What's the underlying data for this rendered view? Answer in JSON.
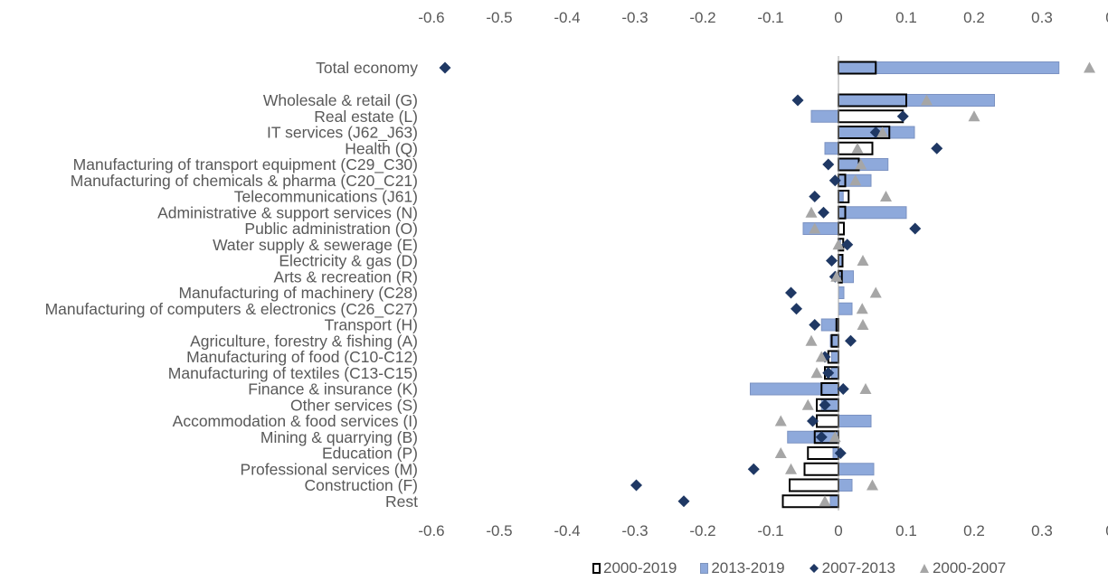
{
  "chart_data": {
    "type": "bar",
    "orientation": "horizontal",
    "xlim": [
      -0.6,
      0.4
    ],
    "x_ticks": [
      "-0.6",
      "-0.5",
      "-0.4",
      "-0.3",
      "-0.2",
      "-0.1",
      "0",
      "0.1",
      "0.2",
      "0.3",
      "0"
    ],
    "grid": false,
    "legend_position": "bottom",
    "categories": [
      "Total economy",
      "Wholesale & retail (G)",
      "Real estate (L)",
      "IT services (J62_J63)",
      "Health (Q)",
      "Manufacturing of transport equipment (C29_C30)",
      "Manufacturing of chemicals & pharma (C20_C21)",
      "Telecommunications (J61)",
      "Administrative & support services (N)",
      "Public administration (O)",
      "Water supply & sewerage (E)",
      "Electricity & gas (D)",
      "Arts & recreation (R)",
      "Manufacturing of machinery (C28)",
      "Manufacturing of computers & electronics (C26_C27)",
      "Transport (H)",
      "Agriculture, forestry & fishing (A)",
      "Manufacturing of food (C10-C12)",
      "Manufacturing of textiles (C13-C15)",
      "Finance & insurance (K)",
      "Other services (S)",
      "Accommodation & food services (I)",
      "Mining & quarrying (B)",
      "Education (P)",
      "Professional services (M)",
      "Construction (F)",
      "Rest"
    ],
    "series": [
      {
        "name": "2000-2019",
        "kind": "bar-outline",
        "color": "#000000",
        "values": [
          0.055,
          0.1,
          0.095,
          0.075,
          0.05,
          0.03,
          0.01,
          0.015,
          0.01,
          0.008,
          0.007,
          0.006,
          0.005,
          0.0,
          0.0,
          -0.003,
          -0.01,
          -0.015,
          -0.02,
          -0.025,
          -0.032,
          -0.032,
          -0.035,
          -0.045,
          -0.05,
          -0.072,
          -0.082
        ]
      },
      {
        "name": "2013-2019",
        "kind": "bar",
        "color": "#8EA9DB",
        "values": [
          0.325,
          0.23,
          -0.04,
          0.112,
          -0.02,
          0.073,
          0.048,
          0.007,
          0.1,
          -0.052,
          0.003,
          0.006,
          0.022,
          0.008,
          0.02,
          -0.025,
          -0.012,
          -0.01,
          -0.01,
          -0.13,
          -0.025,
          0.048,
          -0.075,
          -0.008,
          0.052,
          0.02,
          -0.012
        ]
      },
      {
        "name": "2007-2013",
        "kind": "marker-diamond",
        "color": "#1F3864",
        "values": [
          -0.58,
          -0.06,
          0.095,
          0.055,
          0.145,
          -0.015,
          -0.005,
          -0.035,
          -0.022,
          0.113,
          0.013,
          -0.01,
          -0.005,
          -0.07,
          -0.062,
          -0.035,
          0.018,
          -0.02,
          -0.015,
          0.007,
          -0.02,
          -0.038,
          -0.025,
          0.003,
          -0.125,
          -0.298,
          -0.228
        ]
      },
      {
        "name": "2000-2007",
        "kind": "marker-triangle",
        "color": "#A6A6A6",
        "values": [
          0.37,
          0.13,
          0.2,
          0.065,
          0.028,
          0.033,
          0.025,
          0.07,
          -0.04,
          -0.035,
          0.0,
          0.036,
          -0.003,
          0.055,
          0.035,
          0.036,
          -0.04,
          -0.025,
          -0.032,
          0.04,
          -0.045,
          -0.085,
          -0.005,
          -0.085,
          -0.07,
          0.05,
          -0.02
        ]
      }
    ]
  }
}
